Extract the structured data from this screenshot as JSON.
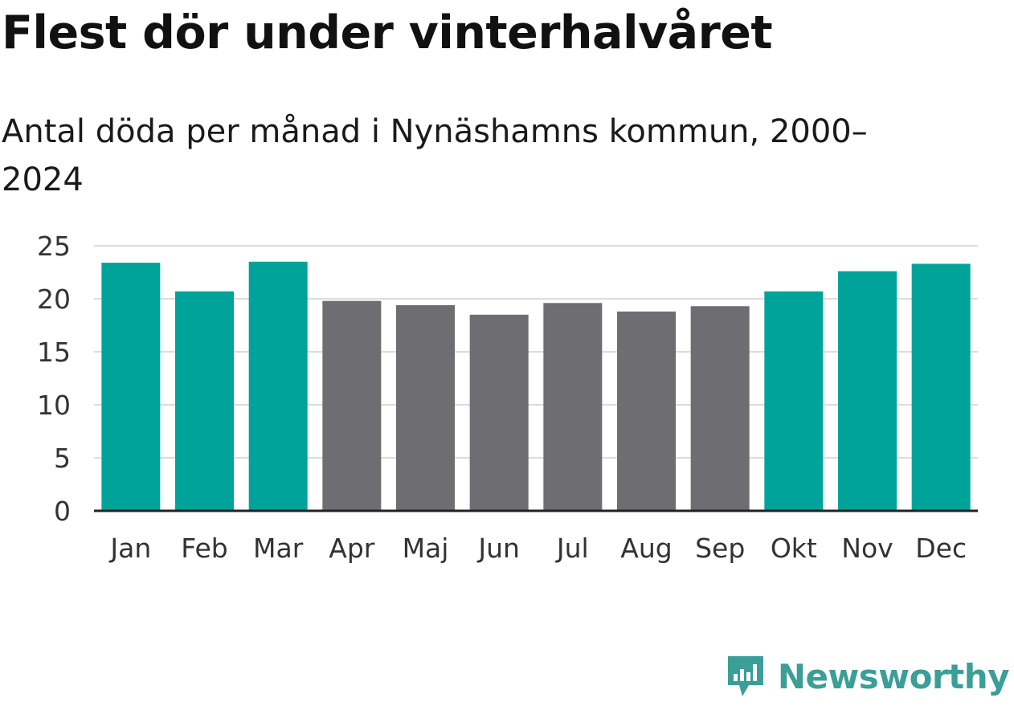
{
  "chart_data": {
    "type": "bar",
    "title": "Flest dör under vinterhalvåret",
    "subtitle": "Antal döda per månad i Nynäshamns kommun, 2000–2024",
    "categories": [
      "Jan",
      "Feb",
      "Mar",
      "Apr",
      "Maj",
      "Jun",
      "Jul",
      "Aug",
      "Sep",
      "Okt",
      "Nov",
      "Dec"
    ],
    "values": [
      23.4,
      20.7,
      23.5,
      19.8,
      19.4,
      18.5,
      19.6,
      18.8,
      19.3,
      20.7,
      22.6,
      23.3
    ],
    "highlight": [
      true,
      true,
      true,
      false,
      false,
      false,
      false,
      false,
      false,
      true,
      true,
      true
    ],
    "ylim": [
      0,
      25
    ],
    "yticks": [
      0,
      5,
      10,
      15,
      20,
      25
    ],
    "grid": true,
    "xlabel": "",
    "ylabel": ""
  },
  "colors": {
    "highlight": "#00a39a",
    "normal": "#6e6d72",
    "grid": "#dcdcdc",
    "axis": "#222222"
  },
  "brand": {
    "name": "Newsworthy",
    "icon": "newsworthy-logo-icon"
  }
}
